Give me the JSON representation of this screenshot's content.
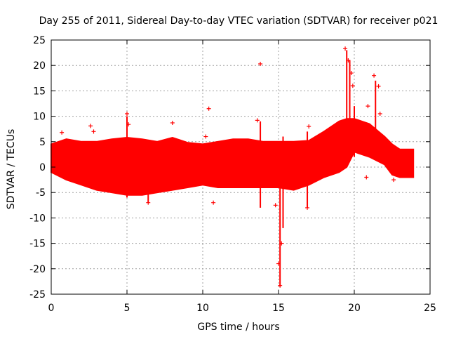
{
  "chart_data": {
    "type": "scatter",
    "title": "Day 255 of 2011, Sidereal Day-to-day VTEC variation (SDTVAR) for receiver p021",
    "xlabel": "GPS time / hours",
    "ylabel": "SDTVAR / TECUs",
    "xlim": [
      0,
      25
    ],
    "ylim": [
      -25,
      25
    ],
    "xticks": [
      0,
      5,
      10,
      15,
      20,
      25
    ],
    "yticks": [
      -25,
      -20,
      -15,
      -10,
      -5,
      0,
      5,
      10,
      15,
      20,
      25
    ],
    "grid": true,
    "marker": "+",
    "series_color": "#ff0000",
    "band": {
      "x": [
        0,
        1,
        2,
        3,
        4,
        5,
        6,
        7,
        8,
        9,
        10,
        11,
        12,
        13,
        14,
        15,
        16,
        17,
        18,
        19,
        19.5,
        20,
        21,
        22,
        22.5,
        23,
        23.9
      ],
      "upper": [
        4.5,
        5.5,
        5.0,
        5.0,
        5.5,
        5.8,
        5.5,
        5.0,
        5.8,
        4.8,
        4.5,
        5.0,
        5.5,
        5.5,
        5.0,
        5.0,
        5.0,
        5.2,
        7.0,
        9.0,
        9.5,
        9.5,
        8.5,
        6.0,
        4.5,
        3.5,
        3.5
      ],
      "lower": [
        -1.0,
        -2.5,
        -3.5,
        -4.5,
        -5.0,
        -5.5,
        -5.5,
        -5.0,
        -4.5,
        -4.0,
        -3.5,
        -4.0,
        -4.0,
        -4.0,
        -4.0,
        -4.0,
        -4.5,
        -3.5,
        -2.0,
        -1.0,
        0.0,
        3.0,
        2.0,
        0.5,
        -1.5,
        -2.0,
        -2.0
      ]
    },
    "spikes": [
      {
        "x": 0.7,
        "y": 6.8
      },
      {
        "x": 2.6,
        "y": 8.1
      },
      {
        "x": 2.8,
        "y": 7.0
      },
      {
        "x": 5.0,
        "y": 10.5
      },
      {
        "x": 5.1,
        "y": 8.4
      },
      {
        "x": 8.0,
        "y": 8.7
      },
      {
        "x": 10.4,
        "y": 11.5
      },
      {
        "x": 10.2,
        "y": 6.0
      },
      {
        "x": 13.6,
        "y": 9.2
      },
      {
        "x": 13.8,
        "y": 20.3
      },
      {
        "x": 17.0,
        "y": 8.0
      },
      {
        "x": 19.4,
        "y": 23.3
      },
      {
        "x": 19.6,
        "y": 21.0
      },
      {
        "x": 19.8,
        "y": 18.5
      },
      {
        "x": 19.9,
        "y": 16.0
      },
      {
        "x": 21.3,
        "y": 18.0
      },
      {
        "x": 21.6,
        "y": 15.9
      },
      {
        "x": 21.7,
        "y": 10.5
      },
      {
        "x": 20.9,
        "y": 12.0
      },
      {
        "x": 15.1,
        "y": -23.3
      },
      {
        "x": 15.0,
        "y": -19.0
      },
      {
        "x": 15.2,
        "y": -15.0
      },
      {
        "x": 6.4,
        "y": -7.0
      },
      {
        "x": 10.7,
        "y": -7.0
      },
      {
        "x": 14.8,
        "y": -7.5
      },
      {
        "x": 16.9,
        "y": -8.0
      },
      {
        "x": 20.8,
        "y": -2.0
      },
      {
        "x": 22.6,
        "y": -2.5
      }
    ],
    "vertical_streaks": [
      {
        "x": 15.1,
        "y_min": -23.5,
        "y_max": 2.0
      },
      {
        "x": 15.3,
        "y_min": -12.0,
        "y_max": 6.0
      },
      {
        "x": 19.5,
        "y_min": 0.0,
        "y_max": 23.0
      },
      {
        "x": 19.7,
        "y_min": 2.0,
        "y_max": 21.0
      },
      {
        "x": 13.8,
        "y_min": -8.0,
        "y_max": 9.0
      },
      {
        "x": 16.9,
        "y_min": -8.0,
        "y_max": 7.0
      },
      {
        "x": 6.4,
        "y_min": -7.0,
        "y_max": 4.0
      },
      {
        "x": 5.0,
        "y_min": -6.0,
        "y_max": 10.0
      },
      {
        "x": 21.4,
        "y_min": 3.0,
        "y_max": 17.0
      },
      {
        "x": 20.0,
        "y_min": 2.0,
        "y_max": 12.0
      }
    ]
  }
}
